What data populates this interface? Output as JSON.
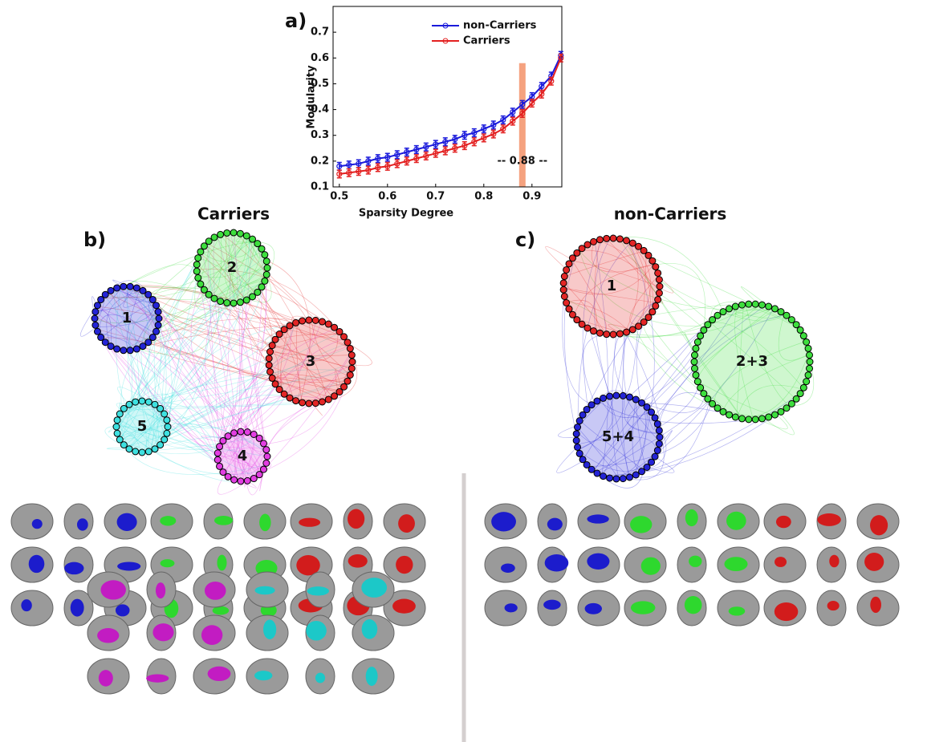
{
  "chart_data": {
    "type": "line",
    "panel_label": "a)",
    "x_label": "Sparsity Degree",
    "y_label": "Modularity",
    "x": [
      0.5,
      0.52,
      0.54,
      0.56,
      0.58,
      0.6,
      0.62,
      0.64,
      0.66,
      0.68,
      0.7,
      0.72,
      0.74,
      0.76,
      0.78,
      0.8,
      0.82,
      0.84,
      0.86,
      0.88,
      0.9,
      0.92,
      0.94,
      0.96
    ],
    "series": [
      {
        "name": "non-Carriers",
        "color": "#1a1adb",
        "values": [
          0.18,
          0.185,
          0.19,
          0.2,
          0.21,
          0.215,
          0.225,
          0.235,
          0.245,
          0.255,
          0.265,
          0.275,
          0.285,
          0.3,
          0.31,
          0.325,
          0.34,
          0.36,
          0.39,
          0.42,
          0.45,
          0.49,
          0.53,
          0.61
        ],
        "errors": [
          0.015,
          0.015,
          0.015,
          0.015,
          0.015,
          0.015,
          0.015,
          0.015,
          0.015,
          0.015,
          0.015,
          0.015,
          0.015,
          0.015,
          0.015,
          0.015,
          0.015,
          0.015,
          0.015,
          0.015,
          0.015,
          0.015,
          0.015,
          0.015
        ]
      },
      {
        "name": "Carriers",
        "color": "#e32020",
        "values": [
          0.15,
          0.155,
          0.16,
          0.165,
          0.175,
          0.18,
          0.19,
          0.2,
          0.21,
          0.22,
          0.23,
          0.24,
          0.25,
          0.26,
          0.275,
          0.29,
          0.305,
          0.325,
          0.355,
          0.385,
          0.425,
          0.46,
          0.51,
          0.6
        ],
        "errors": [
          0.015,
          0.015,
          0.015,
          0.015,
          0.015,
          0.015,
          0.015,
          0.015,
          0.015,
          0.015,
          0.015,
          0.015,
          0.015,
          0.015,
          0.015,
          0.015,
          0.015,
          0.015,
          0.015,
          0.015,
          0.015,
          0.015,
          0.015,
          0.015
        ]
      }
    ],
    "xlim": [
      0.487,
      0.962
    ],
    "ylim": [
      0.1,
      0.8
    ],
    "xticks": [
      0.5,
      0.6,
      0.7,
      0.8,
      0.9
    ],
    "yticks": [
      0.1,
      0.2,
      0.3,
      0.4,
      0.5,
      0.6,
      0.7
    ],
    "highlight": {
      "x": 0.88,
      "ymax": 0.58,
      "color": "#f5a27f",
      "label": "-- 0.88 --"
    },
    "legend": "upper right"
  },
  "networks": [
    {
      "panel_label": "b)",
      "title": "Carriers",
      "modules": [
        {
          "label": "1",
          "color": "#2424d6"
        },
        {
          "label": "2",
          "color": "#3ede3e"
        },
        {
          "label": "3",
          "color": "#e32626"
        },
        {
          "label": "4",
          "color": "#e23ee2"
        },
        {
          "label": "5",
          "color": "#3ee0e0"
        }
      ]
    },
    {
      "panel_label": "c)",
      "title": "non-Carriers",
      "modules": [
        {
          "label": "1",
          "color": "#e32626"
        },
        {
          "label": "2+3",
          "color": "#3ede3e"
        },
        {
          "label": "5+4",
          "color": "#2424d6"
        }
      ]
    }
  ]
}
